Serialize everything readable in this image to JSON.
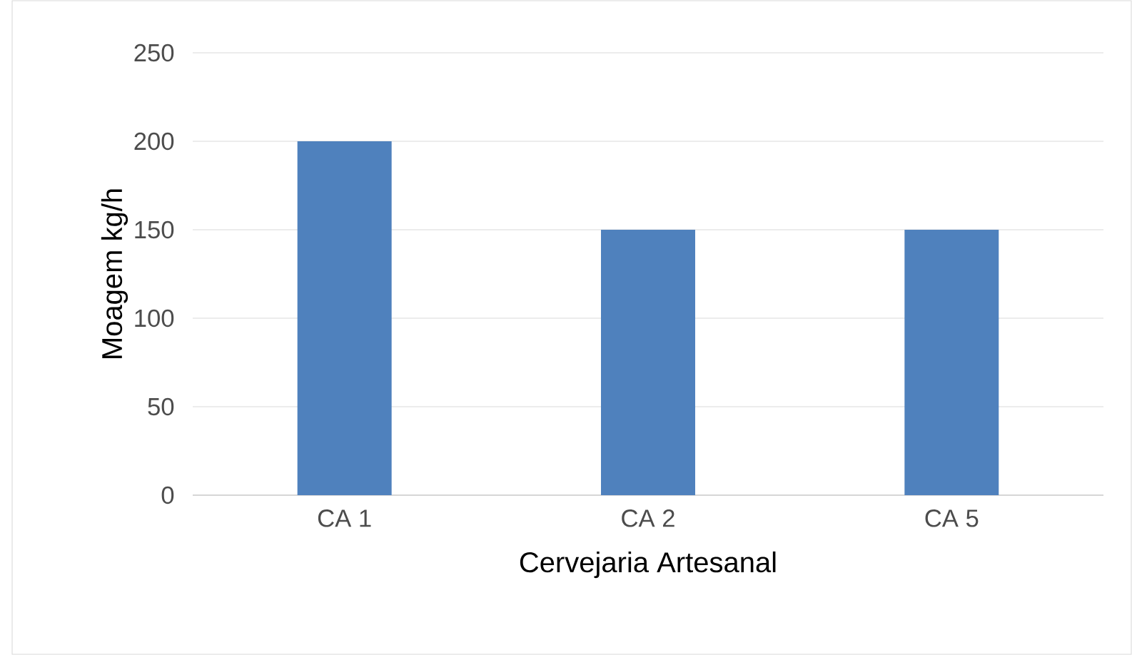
{
  "chart_data": {
    "type": "bar",
    "categories": [
      "CA 1",
      "CA 2",
      "CA 5"
    ],
    "values": [
      200,
      150,
      150
    ],
    "color": "#4f81bd",
    "xlabel": "Cervejaria Artesanal",
    "ylabel": "Moagem kg/h",
    "ylim": [
      0,
      250
    ],
    "yticks": [
      0,
      50,
      100,
      150,
      200,
      250
    ],
    "grid": "y"
  }
}
